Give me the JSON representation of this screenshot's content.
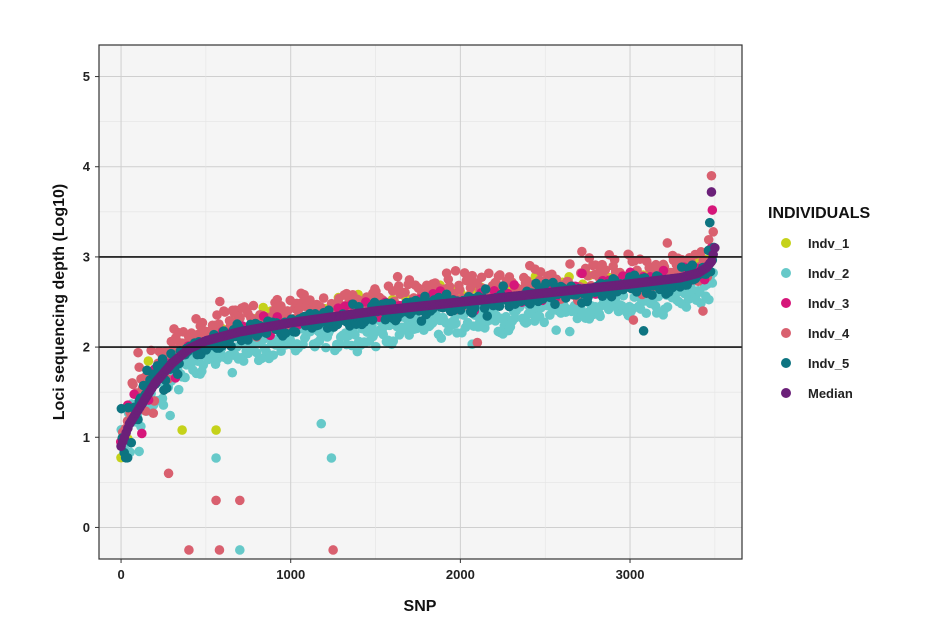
{
  "chart_data": {
    "type": "scatter",
    "title": "",
    "xlabel": "SNP",
    "ylabel": "Loci sequencing depth (Log10)",
    "xlim": [
      -130,
      3660
    ],
    "ylim": [
      -0.35,
      5.35
    ],
    "x_ticks": [
      0,
      1000,
      2000,
      3000
    ],
    "y_ticks": [
      0,
      1,
      2,
      3,
      4,
      5
    ],
    "grid": true,
    "legend_position": "right",
    "legend_title": "INDIVIDUALS",
    "hlines": [
      2,
      3
    ],
    "n_snps": 3500,
    "series": [
      {
        "name": "Indv_1",
        "color": "#c5d21a",
        "offset": 0.08,
        "spread": 0.12
      },
      {
        "name": "Indv_2",
        "color": "#66c9c9",
        "offset": -0.22,
        "spread": 0.18
      },
      {
        "name": "Indv_3",
        "color": "#d6167a",
        "offset": 0.02,
        "spread": 0.14
      },
      {
        "name": "Indv_4",
        "color": "#d9606f",
        "offset": 0.12,
        "spread": 0.2
      },
      {
        "name": "Indv_5",
        "color": "#0d7481",
        "offset": -0.02,
        "spread": 0.12
      },
      {
        "name": "Median",
        "color": "#6b2079",
        "offset": 0,
        "spread": 0
      }
    ],
    "median_curve": {
      "x": [
        0,
        50,
        100,
        150,
        200,
        300,
        400,
        500,
        700,
        1000,
        1500,
        2000,
        2500,
        3000,
        3300,
        3400,
        3450,
        3480,
        3500
      ],
      "y": [
        0.9,
        1.15,
        1.3,
        1.45,
        1.6,
        1.82,
        1.98,
        2.07,
        2.17,
        2.27,
        2.4,
        2.5,
        2.6,
        2.7,
        2.77,
        2.82,
        2.88,
        2.95,
        3.1
      ]
    },
    "outliers": [
      {
        "series": "Indv_2",
        "x": 1180,
        "y": 1.15
      },
      {
        "series": "Indv_2",
        "x": 1240,
        "y": 0.77
      },
      {
        "series": "Indv_2",
        "x": 560,
        "y": 0.77
      },
      {
        "series": "Indv_1",
        "x": 560,
        "y": 1.08
      },
      {
        "series": "Indv_1",
        "x": 360,
        "y": 1.08
      },
      {
        "series": "Indv_4",
        "x": 700,
        "y": 0.3
      },
      {
        "series": "Indv_4",
        "x": 560,
        "y": 0.3
      },
      {
        "series": "Indv_4",
        "x": 1250,
        "y": -0.25
      },
      {
        "series": "Indv_2",
        "x": 700,
        "y": -0.25
      },
      {
        "series": "Indv_4",
        "x": 580,
        "y": -0.25
      },
      {
        "series": "Indv_4",
        "x": 400,
        "y": -0.25
      },
      {
        "series": "Indv_4",
        "x": 280,
        "y": 0.6
      },
      {
        "series": "Indv_4",
        "x": 3480,
        "y": 3.9
      },
      {
        "series": "Median",
        "x": 3480,
        "y": 3.72
      },
      {
        "series": "Indv_3",
        "x": 3485,
        "y": 3.52
      },
      {
        "series": "Indv_5",
        "x": 3470,
        "y": 3.38
      },
      {
        "series": "Indv_4",
        "x": 3430,
        "y": 2.4
      },
      {
        "series": "Indv_5",
        "x": 3080,
        "y": 2.18
      },
      {
        "series": "Indv_4",
        "x": 3020,
        "y": 2.3
      },
      {
        "series": "Indv_4",
        "x": 2100,
        "y": 2.05
      }
    ]
  }
}
